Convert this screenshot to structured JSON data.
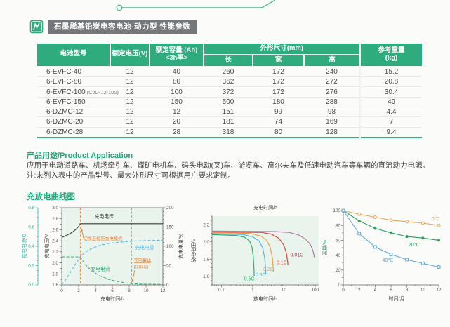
{
  "colors": {
    "accent_green": "#2fac7e",
    "decor_green": "#4dc08e",
    "badge_gray": "#75787a",
    "chart_bg_green": "#e9f4ec",
    "annotation_orange": "#ee7d33"
  },
  "header": {
    "title": "石墨烯基铅炭电容电池-动力型 性能参数"
  },
  "table": {
    "headers": {
      "model": "电池型号",
      "voltage": "额定电压(V)",
      "capacity_line1": "额定容量 (Ah)",
      "capacity_line2": "<3h率>",
      "dims": "外形尺寸(mm)",
      "len": "长",
      "wid": "宽",
      "hei": "高",
      "weight_line1": "参考重量",
      "weight_line2": "(kg)"
    },
    "rows": [
      {
        "model": "6-EVFC-40",
        "note": "",
        "voltage": "12",
        "capacity": "40",
        "l": "260",
        "w": "172",
        "h": "240",
        "weight": "15.2"
      },
      {
        "model": "6-EVFC-80",
        "note": "",
        "voltage": "12",
        "capacity": "80",
        "l": "362",
        "w": "172",
        "h": "272",
        "weight": "20.8"
      },
      {
        "model": "6-EVFC-100",
        "note": "(CJD-12-100)",
        "voltage": "12",
        "capacity": "100",
        "l": "372",
        "w": "172",
        "h": "276",
        "weight": "30.4"
      },
      {
        "model": "6-EVFC-150",
        "note": "",
        "voltage": "12",
        "capacity": "150",
        "l": "500",
        "w": "180",
        "h": "288",
        "weight": "49"
      },
      {
        "model": "6-DZMC-12",
        "note": "",
        "voltage": "12",
        "capacity": "12",
        "l": "151",
        "w": "99",
        "h": "98",
        "weight": "4.4"
      },
      {
        "model": "6-DZMC-20",
        "note": "",
        "voltage": "12",
        "capacity": "20",
        "l": "181",
        "w": "74",
        "h": "169",
        "weight": "7"
      },
      {
        "model": "6-DZMC-28",
        "note": "",
        "voltage": "12",
        "capacity": "28",
        "l": "318",
        "w": "80",
        "h": "128",
        "weight": "9.4"
      }
    ]
  },
  "application": {
    "title": "产品用途/Product Application",
    "body": "应用于电动道路车、机场牵引车、煤矿电机车、码头电动(叉)车、游览车、高尔夫车及低速电动汽车等车辆的直流动力电源。",
    "note": "注:未列入表中的产品型号、最大外形尺寸可根据用户要求定制。"
  },
  "curves_section": {
    "title": "充放电曲线图"
  },
  "chart_data": [
    {
      "id": "charge-curve",
      "type": "line",
      "xlabel": "充电时间/h",
      "xlim": [
        0,
        12
      ],
      "x_ticks": [
        0,
        2,
        4,
        6,
        8,
        10,
        12
      ],
      "bg": "#e9f4ec",
      "accent": "#ee7d33",
      "axes": {
        "current": {
          "label": "充电电流/C",
          "lim": [
            0,
            0.8
          ],
          "ticks": [
            0.0,
            0.2,
            0.4,
            0.6,
            0.8
          ],
          "color": "#2fb5a0"
        },
        "voltage": {
          "label": "充电电压/V",
          "lim": [
            1.6,
            3.0
          ],
          "ticks": [
            1.6,
            1.8,
            2.0,
            2.2,
            2.4,
            2.6,
            2.8,
            3.0
          ],
          "color": "#555555"
        },
        "percent": {
          "label": "充电电量/%",
          "lim": [
            0,
            200
          ],
          "ticks": [
            0,
            50,
            100,
            150,
            200
          ],
          "color": "#555555"
        }
      },
      "vlines": [
        2.2,
        8.3
      ],
      "series": [
        {
          "name": "充电电压",
          "axis": "voltage",
          "color": "#3a3a3a",
          "dash": null,
          "points": [
            [
              0,
              2.46
            ],
            [
              0.6,
              2.5
            ],
            [
              1.2,
              2.55
            ],
            [
              1.7,
              2.61
            ],
            [
              2.0,
              2.66
            ],
            [
              2.2,
              2.71
            ],
            [
              12,
              2.71
            ]
          ]
        },
        {
          "name": "充电电流",
          "axis": "current",
          "color": "#41b478",
          "dash": "4,2.5",
          "points": [
            [
              0,
              0.29
            ],
            [
              2.2,
              0.29
            ],
            [
              2.8,
              0.21
            ],
            [
              3.5,
              0.15
            ],
            [
              4.5,
              0.095
            ],
            [
              5.5,
              0.06
            ],
            [
              6.5,
              0.037
            ],
            [
              7.5,
              0.022
            ],
            [
              8.3,
              0.013
            ],
            [
              9.5,
              0.008
            ],
            [
              12,
              0.005
            ]
          ]
        },
        {
          "name": "充电电量",
          "axis": "percent",
          "color": "#58b7e8",
          "dash": "4,2.5",
          "points": [
            [
              0,
              0
            ],
            [
              0.5,
              15
            ],
            [
              1,
              32
            ],
            [
              1.5,
              50
            ],
            [
              2,
              66
            ],
            [
              2.2,
              73
            ],
            [
              2.8,
              85
            ],
            [
              3.5,
              94
            ],
            [
              4.5,
              102
            ],
            [
              5.5,
              107
            ],
            [
              7,
              111
            ],
            [
              9,
              114
            ],
            [
              12,
              116
            ]
          ]
        }
      ],
      "annotations": {
        "voltage": "充电电压",
        "switch_cv": "切换至恒压充电模式",
        "current": "充电电流",
        "quantity": "充电电量",
        "cutoff_line1": "充电截止",
        "cutoff_line2": "(0.01C)"
      }
    },
    {
      "id": "discharge-curve",
      "type": "line",
      "title": "充电时间/h",
      "xlabel": "放电时间/h",
      "ylabel": "放电电压/V",
      "xscale": "log",
      "xlim": [
        0.05,
        130
      ],
      "x_ticks": [
        0.1,
        1,
        10,
        100
      ],
      "ylim": [
        1.5,
        2.3
      ],
      "y_ticks": [
        1.6,
        1.8,
        2.0,
        2.2
      ],
      "bg": "#e9f4ec",
      "series": [
        {
          "name": "0.5C",
          "color": "#2fae6a",
          "label_at": [
            0.78,
            1.555
          ],
          "points": [
            [
              0.05,
              2.085
            ],
            [
              0.3,
              2.075
            ],
            [
              0.55,
              2.055
            ],
            [
              0.8,
              2.01
            ],
            [
              0.95,
              1.94
            ],
            [
              1.05,
              1.82
            ],
            [
              1.1,
              1.68
            ],
            [
              1.12,
              1.6
            ]
          ]
        },
        {
          "name": "0.3C",
          "color": "#54b4e6",
          "label_at": [
            1.8,
            1.6
          ],
          "points": [
            [
              0.05,
              2.095
            ],
            [
              0.5,
              2.085
            ],
            [
              1.0,
              2.06
            ],
            [
              1.6,
              2.01
            ],
            [
              2.1,
              1.93
            ],
            [
              2.45,
              1.8
            ],
            [
              2.6,
              1.68
            ],
            [
              2.65,
              1.62
            ]
          ]
        },
        {
          "name": "0.2C",
          "color": "#f0a24c",
          "label_at": [
            3.2,
            1.665
          ],
          "points": [
            [
              0.05,
              2.105
            ],
            [
              0.8,
              2.1
            ],
            [
              1.8,
              2.07
            ],
            [
              2.8,
              2.02
            ],
            [
              3.7,
              1.93
            ],
            [
              4.3,
              1.81
            ],
            [
              4.55,
              1.7
            ],
            [
              4.65,
              1.65
            ]
          ]
        },
        {
          "name": "0.1C",
          "color": "#e0473d",
          "label_at": [
            8.5,
            1.74
          ],
          "points": [
            [
              0.05,
              2.115
            ],
            [
              2,
              2.11
            ],
            [
              4,
              2.09
            ],
            [
              7,
              2.04
            ],
            [
              10,
              1.96
            ],
            [
              12,
              1.87
            ],
            [
              13.2,
              1.77
            ],
            [
              13.5,
              1.73
            ]
          ]
        },
        {
          "name": "0.01C",
          "color": "#b07ba3",
          "label_color": "#a63d4e",
          "label_at": [
            26,
            1.83
          ],
          "points": [
            [
              0.05,
              2.125
            ],
            [
              5,
              2.12
            ],
            [
              15,
              2.11
            ],
            [
              30,
              2.08
            ],
            [
              50,
              2.03
            ],
            [
              70,
              1.97
            ],
            [
              85,
              1.9
            ],
            [
              95,
              1.82
            ]
          ]
        }
      ]
    },
    {
      "id": "capacity-retention",
      "type": "line",
      "xlabel": "时间/月",
      "ylabel": "容量/%",
      "ylabel_color": "#2fac7e",
      "x": [
        0,
        2,
        4,
        6,
        8,
        10,
        12
      ],
      "x_ticks": [
        0,
        2,
        4,
        6,
        8,
        10,
        12
      ],
      "ylim": [
        0,
        100
      ],
      "y_ticks": [
        0,
        20,
        40,
        60,
        80,
        100
      ],
      "series": [
        {
          "name": "0℃",
          "color": "#eda65a",
          "marker": "circle-open",
          "label_at": [
            11.1,
            87
          ],
          "values": [
            100,
            95,
            91,
            87,
            85,
            83,
            80
          ]
        },
        {
          "name": "20℃",
          "color": "#2f9e5d",
          "marker": "circle-filled",
          "label_at": [
            8.2,
            52
          ],
          "values": [
            100,
            86,
            76,
            70,
            65,
            63,
            60
          ]
        },
        {
          "name": "40℃",
          "color": "#5aabdc",
          "marker": "square-open",
          "label_at": [
            4.9,
            31
          ],
          "values": [
            100,
            69,
            51,
            41,
            34,
            29,
            24
          ]
        }
      ]
    }
  ]
}
